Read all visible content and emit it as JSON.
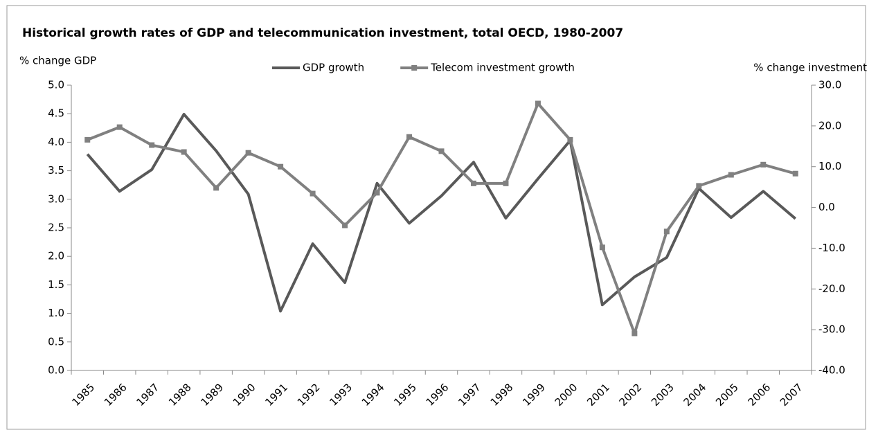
{
  "chart_data": {
    "type": "line",
    "title": "Historical growth rates of GDP and telecommunication investment, total OECD, 1980-2007",
    "y_label": "% change GDP",
    "y2_label": "% change investment",
    "categories": [
      "1985",
      "1986",
      "1987",
      "1988",
      "1989",
      "1990",
      "1991",
      "1992",
      "1993",
      "1994",
      "1995",
      "1996",
      "1997",
      "1998",
      "1999",
      "2000",
      "2001",
      "2002",
      "2003",
      "2004",
      "2005",
      "2006",
      "2007"
    ],
    "series": [
      {
        "name": "GDP growth",
        "color": "#595959",
        "values": [
          3.79,
          3.14,
          3.52,
          4.49,
          3.85,
          3.09,
          1.04,
          2.22,
          1.54,
          3.28,
          2.58,
          3.06,
          3.65,
          2.67,
          3.36,
          4.03,
          1.15,
          1.64,
          1.98,
          3.19,
          2.68,
          3.14,
          2.66
        ]
      },
      {
        "name": "Telecom investment growth",
        "color": "#808080",
        "axis": "y2",
        "marker": "square",
        "values": [
          16.6,
          19.7,
          15.3,
          13.6,
          4.8,
          13.4,
          10.0,
          3.4,
          -4.4,
          3.6,
          17.3,
          13.8,
          5.9,
          5.9,
          25.5,
          16.6,
          -9.8,
          -30.9,
          -5.9,
          5.3,
          8.0,
          10.5,
          8.3
        ]
      }
    ],
    "ylim": [
      0,
      5
    ],
    "yticks": [
      {
        "value": 0,
        "label": "0.0"
      },
      {
        "value": 0.5,
        "label": "0.5"
      },
      {
        "value": 1,
        "label": "1.0"
      },
      {
        "value": 1.5,
        "label": "1.5"
      },
      {
        "value": 2,
        "label": "2.0"
      },
      {
        "value": 2.5,
        "label": "2.5"
      },
      {
        "value": 3,
        "label": "3.0"
      },
      {
        "value": 3.5,
        "label": "3.5"
      },
      {
        "value": 4,
        "label": "4.0"
      },
      {
        "value": 4.5,
        "label": "4.5"
      },
      {
        "value": 5,
        "label": "5.0"
      }
    ],
    "y2lim": [
      -40,
      30
    ],
    "y2ticks": [
      {
        "value": -40,
        "label": "-40.0"
      },
      {
        "value": -30,
        "label": "-30.0"
      },
      {
        "value": -20,
        "label": "-20.0"
      },
      {
        "value": -10,
        "label": "-10.0"
      },
      {
        "value": 0,
        "label": "0.0"
      },
      {
        "value": 10,
        "label": "10.0"
      },
      {
        "value": 20,
        "label": "20.0"
      },
      {
        "value": 30,
        "label": "30.0"
      }
    ],
    "grid": false,
    "legend": "top"
  }
}
